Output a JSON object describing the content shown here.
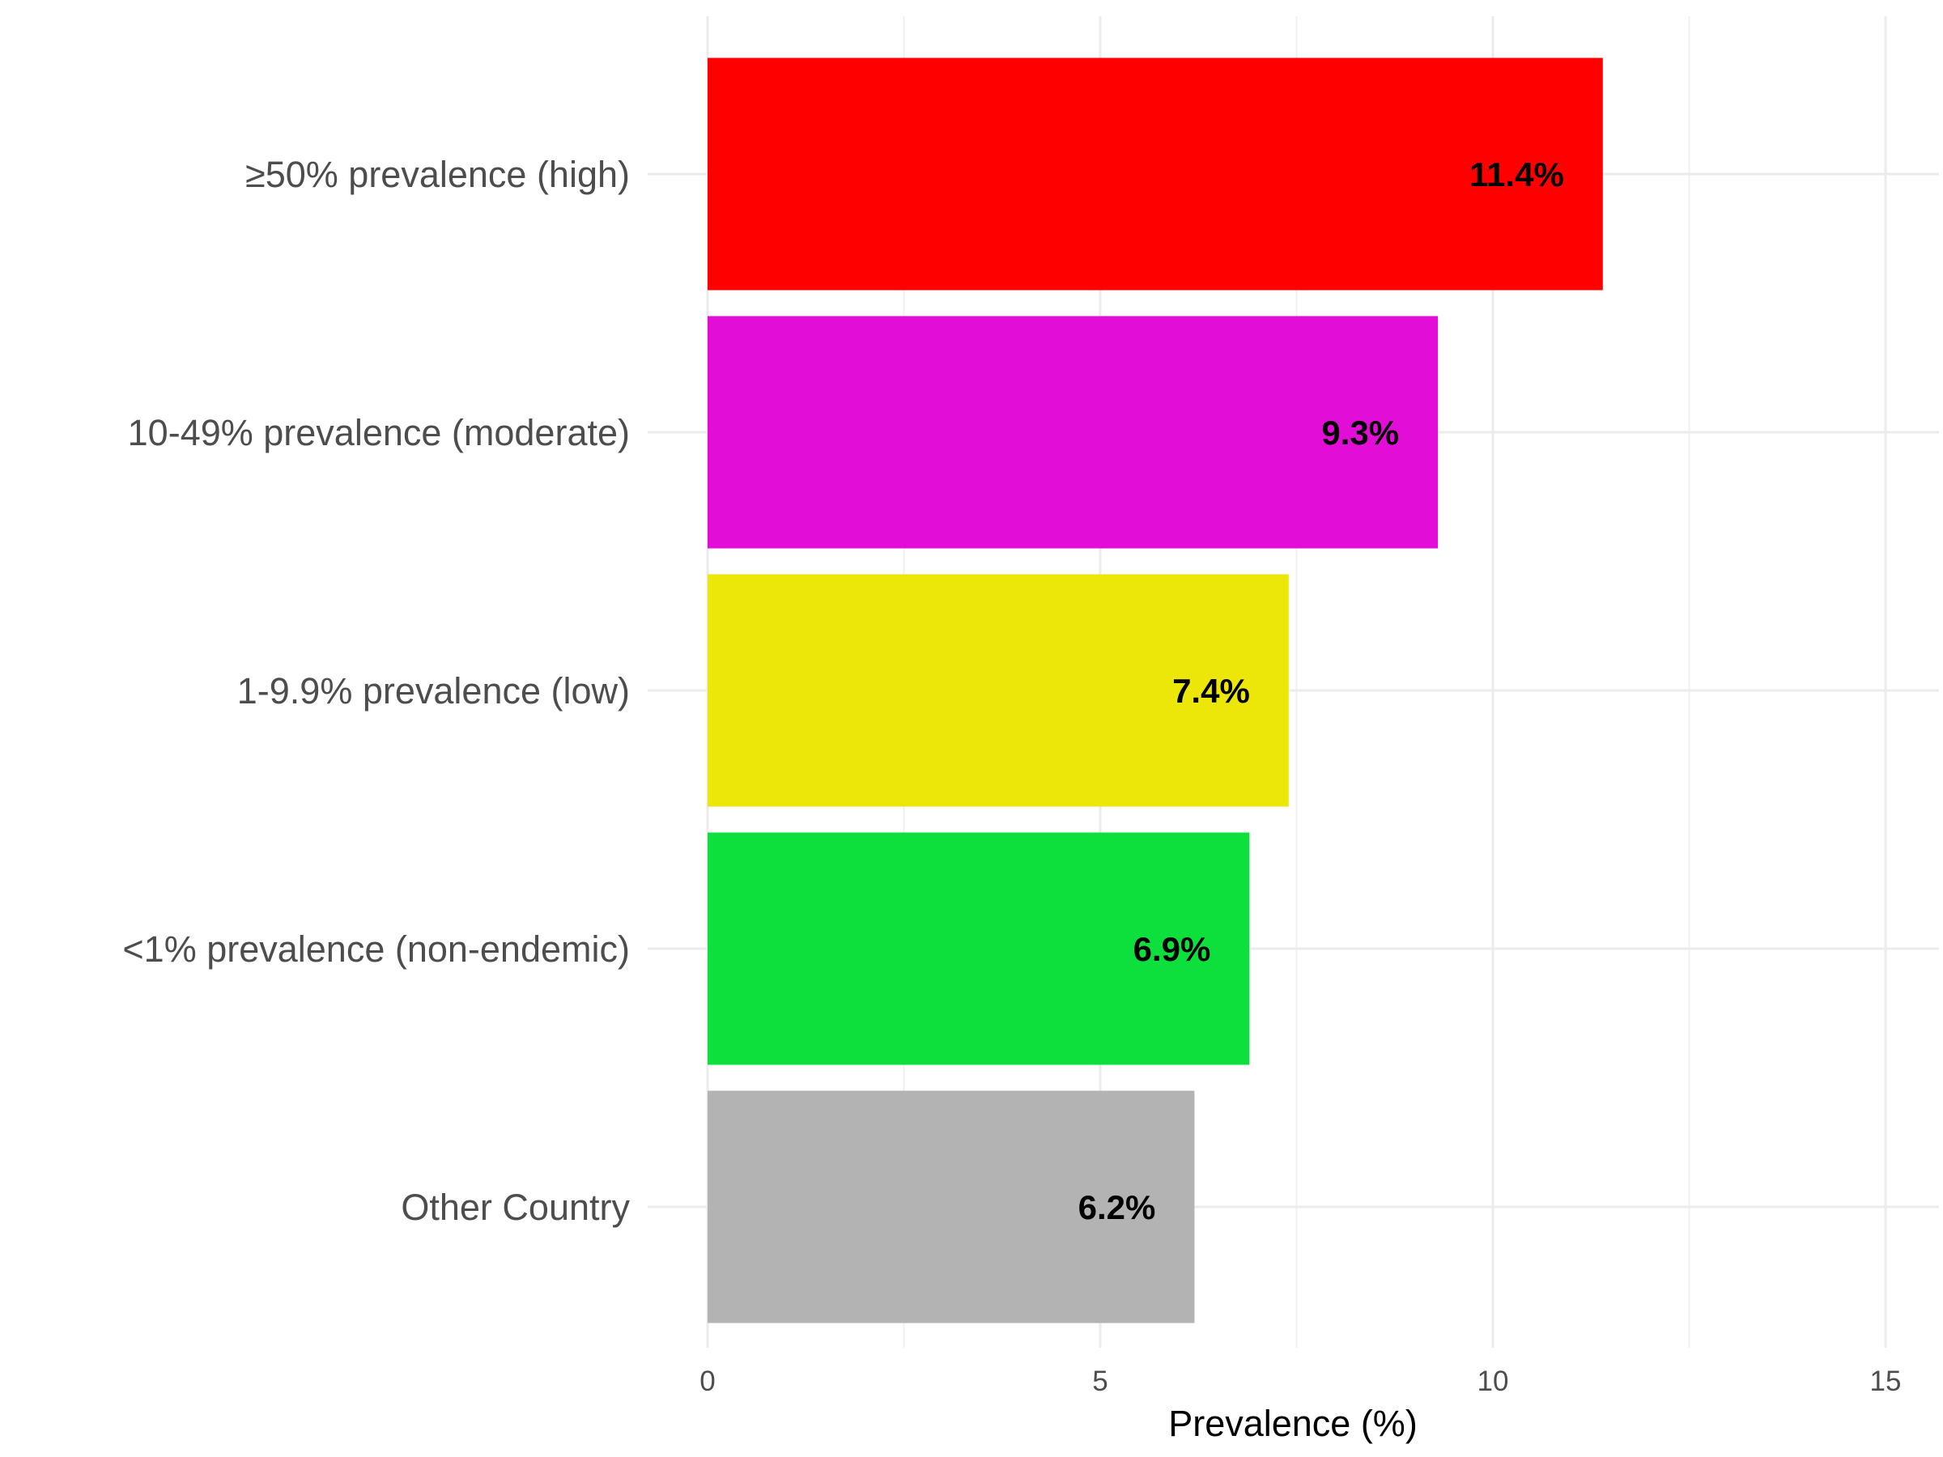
{
  "chart_data": {
    "type": "bar",
    "orientation": "horizontal",
    "categories": [
      "≥50% prevalence (high)",
      "10-49% prevalence (moderate)",
      "1-9.9% prevalence (low)",
      "<1% prevalence (non-endemic)",
      "Other Country"
    ],
    "values": [
      11.4,
      9.3,
      7.4,
      6.9,
      6.2
    ],
    "data_labels": [
      "11.4%",
      "9.3%",
      "7.4%",
      "6.9%",
      "6.2%"
    ],
    "colors": [
      "#ff0000",
      "#e30dd8",
      "#ece609",
      "#0de03c",
      "#b3b3b3"
    ],
    "xlabel": "Prevalence (%)",
    "ylabel": "",
    "title": "",
    "xlim": [
      0,
      15.5
    ],
    "xticks": [
      0,
      5,
      10,
      15
    ],
    "xtick_labels": [
      "0",
      "5",
      "10",
      "15"
    ],
    "grid": true,
    "legend": "none"
  }
}
